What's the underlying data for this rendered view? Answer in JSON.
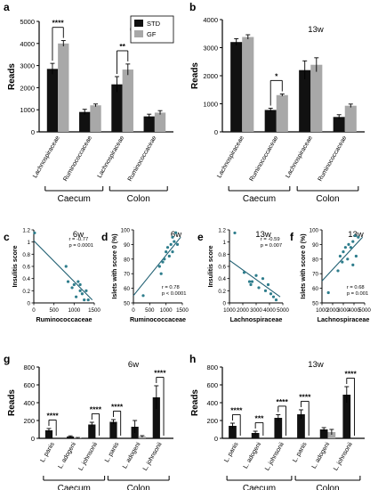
{
  "colors": {
    "std": "#111111",
    "gf": "#a8a8a8",
    "scatter_point": "#2e7d8c",
    "fit_line": "#1f5f72"
  },
  "chart_data": [
    {
      "panel": "a",
      "type": "bar",
      "title": "6w",
      "ylabel": "Reads",
      "ylim": [
        0,
        5000
      ],
      "yticks": [
        0,
        1000,
        2000,
        3000,
        4000,
        5000
      ],
      "categories": [
        "Lachnospiraceae",
        "Ruminococcaceae",
        "Lachnospiraceae",
        "Ruminococcaceae"
      ],
      "groups": [
        {
          "label": "Caecum",
          "categories": [
            0,
            1
          ]
        },
        {
          "label": "Colon",
          "categories": [
            2,
            3
          ]
        }
      ],
      "legend": {
        "position": "top-right",
        "entries": [
          "STD",
          "GF"
        ]
      },
      "series": [
        {
          "name": "STD",
          "values": [
            2850,
            900,
            2150,
            700
          ],
          "errors": [
            250,
            120,
            350,
            100
          ]
        },
        {
          "name": "GF",
          "values": [
            4000,
            1200,
            2820,
            870
          ],
          "errors": [
            130,
            60,
            250,
            90
          ]
        }
      ],
      "annotations": [
        {
          "category": 0,
          "text": "****"
        },
        {
          "category": 2,
          "text": "**"
        }
      ]
    },
    {
      "panel": "b",
      "type": "bar",
      "title": "13w",
      "ylabel": "Reads",
      "ylim": [
        0,
        4000
      ],
      "yticks": [
        0,
        1000,
        2000,
        3000,
        4000
      ],
      "categories": [
        "Lachnospiraceae",
        "Ruminococcaceae",
        "Lachnospiraceae",
        "Ruminococcaceae"
      ],
      "groups": [
        {
          "label": "Caecum",
          "categories": [
            0,
            1
          ]
        },
        {
          "label": "Colon",
          "categories": [
            2,
            3
          ]
        }
      ],
      "series": [
        {
          "name": "STD",
          "values": [
            3200,
            780,
            2200,
            530
          ],
          "errors": [
            120,
            60,
            330,
            80
          ]
        },
        {
          "name": "GF",
          "values": [
            3380,
            1310,
            2390,
            930
          ],
          "errors": [
            80,
            40,
            250,
            60
          ]
        }
      ],
      "annotations": [
        {
          "category": 1,
          "text": "*"
        }
      ]
    },
    {
      "panel": "c",
      "type": "scatter",
      "title": "6w",
      "xlabel": "Ruminococcaceae",
      "ylabel": "Insulitis score",
      "xlim": [
        0,
        1500
      ],
      "ylim": [
        0,
        1.2
      ],
      "xticks": [
        0,
        500,
        1000,
        1500
      ],
      "yticks": [
        0,
        0.2,
        0.4,
        0.6,
        0.8,
        1.0,
        1.2
      ],
      "stats": [
        "r = -0.77",
        "p = 0.0001"
      ],
      "fit": [
        [
          0,
          1.02
        ],
        [
          1450,
          0.05
        ]
      ],
      "points": [
        [
          20,
          1.15
        ],
        [
          800,
          0.6
        ],
        [
          850,
          0.35
        ],
        [
          950,
          0.25
        ],
        [
          1000,
          0.3
        ],
        [
          1050,
          0.1
        ],
        [
          1100,
          0.35
        ],
        [
          1150,
          0.3
        ],
        [
          1200,
          0.15
        ],
        [
          1250,
          0.05
        ],
        [
          1300,
          0.2
        ],
        [
          1350,
          0.05
        ],
        [
          1150,
          0.2
        ]
      ]
    },
    {
      "panel": "d",
      "type": "scatter",
      "title": "6w",
      "xlabel": "Ruminococcaceae",
      "ylabel": "Islets with score 0 (%)",
      "xlim": [
        0,
        1500
      ],
      "ylim": [
        50,
        100
      ],
      "xticks": [
        0,
        500,
        1000,
        1500
      ],
      "yticks": [
        50,
        60,
        70,
        80,
        90,
        100
      ],
      "stats": [
        "r = 0.78",
        "p < 0.0001"
      ],
      "fit": [
        [
          0,
          55
        ],
        [
          1450,
          95
        ]
      ],
      "points": [
        [
          300,
          55
        ],
        [
          800,
          75
        ],
        [
          850,
          70
        ],
        [
          900,
          78
        ],
        [
          950,
          80
        ],
        [
          1000,
          85
        ],
        [
          1050,
          88
        ],
        [
          1100,
          82
        ],
        [
          1150,
          90
        ],
        [
          1200,
          95
        ],
        [
          1250,
          92
        ],
        [
          1300,
          98
        ],
        [
          1350,
          90
        ],
        [
          1200,
          85
        ]
      ]
    },
    {
      "panel": "e",
      "type": "scatter",
      "title": "13w",
      "xlabel": "Lachnospiraceae",
      "ylabel": "Insulitis score",
      "xlim": [
        1000,
        5000
      ],
      "ylim": [
        0,
        1.2
      ],
      "xticks": [
        1000,
        2000,
        3000,
        4000,
        5000
      ],
      "yticks": [
        0,
        0.2,
        0.4,
        0.6,
        0.8,
        1.0,
        1.2
      ],
      "stats": [
        "r = -0.59",
        "p = 0.007"
      ],
      "fit": [
        [
          1000,
          0.7
        ],
        [
          4800,
          0.1
        ]
      ],
      "points": [
        [
          1400,
          1.15
        ],
        [
          2100,
          0.5
        ],
        [
          2500,
          0.35
        ],
        [
          2600,
          0.3
        ],
        [
          2700,
          0.35
        ],
        [
          3000,
          0.45
        ],
        [
          3200,
          0.25
        ],
        [
          3500,
          0.4
        ],
        [
          3700,
          0.2
        ],
        [
          3900,
          0.3
        ],
        [
          4100,
          0.15
        ],
        [
          4300,
          0.1
        ],
        [
          4500,
          0.05
        ]
      ]
    },
    {
      "panel": "f",
      "type": "scatter",
      "title": "13w",
      "xlabel": "Lachnospiraceae",
      "ylabel": "Islets with score 0 (%)",
      "xlim": [
        1000,
        5000
      ],
      "ylim": [
        50,
        100
      ],
      "xticks": [
        1000,
        2000,
        3000,
        4000,
        5000
      ],
      "yticks": [
        50,
        60,
        70,
        80,
        90,
        100
      ],
      "stats": [
        "r = 0.68",
        "p = 0.001"
      ],
      "fit": [
        [
          1000,
          65
        ],
        [
          4800,
          95
        ]
      ],
      "points": [
        [
          1600,
          57
        ],
        [
          2500,
          72
        ],
        [
          2700,
          82
        ],
        [
          2900,
          78
        ],
        [
          3000,
          85
        ],
        [
          3200,
          88
        ],
        [
          3400,
          80
        ],
        [
          3500,
          90
        ],
        [
          3700,
          88
        ],
        [
          3900,
          92
        ],
        [
          4100,
          96
        ],
        [
          4200,
          82
        ],
        [
          4400,
          95
        ],
        [
          3900,
          76
        ]
      ]
    },
    {
      "panel": "g",
      "type": "bar",
      "title": "6w",
      "ylabel": "Reads",
      "ylim": [
        0,
        800
      ],
      "yticks": [
        0,
        200,
        400,
        600,
        800
      ],
      "categories": [
        "L. panis",
        "L. adogeni",
        "L. johnsonii",
        "L. panis",
        "L. adogeni",
        "L. johnsonii"
      ],
      "groups": [
        {
          "label": "Caecum",
          "categories": [
            0,
            1,
            2
          ]
        },
        {
          "label": "Colon",
          "categories": [
            3,
            4,
            5
          ]
        }
      ],
      "series": [
        {
          "name": "STD",
          "values": [
            90,
            20,
            155,
            185,
            130,
            460
          ],
          "errors": [
            20,
            8,
            25,
            25,
            70,
            130
          ]
        },
        {
          "name": "GF",
          "values": [
            0,
            5,
            0,
            0,
            20,
            0
          ],
          "errors": [
            0,
            4,
            0,
            0,
            10,
            0
          ]
        }
      ],
      "annotations": [
        {
          "category": 0,
          "text": "****"
        },
        {
          "category": 2,
          "text": "****"
        },
        {
          "category": 3,
          "text": "****"
        },
        {
          "category": 5,
          "text": "****"
        }
      ]
    },
    {
      "panel": "h",
      "type": "bar",
      "title": "13w",
      "ylabel": "Reads",
      "ylim": [
        0,
        800
      ],
      "yticks": [
        0,
        200,
        400,
        600,
        800
      ],
      "categories": [
        "L. panis",
        "L. adogeni",
        "L. johnsonii",
        "L. panis",
        "L. adogeni",
        "L. johnsonii"
      ],
      "groups": [
        {
          "label": "Caecum",
          "categories": [
            0,
            1,
            2
          ]
        },
        {
          "label": "Colon",
          "categories": [
            3,
            4,
            5
          ]
        }
      ],
      "series": [
        {
          "name": "STD",
          "values": [
            140,
            60,
            230,
            270,
            100,
            490
          ],
          "errors": [
            30,
            20,
            35,
            50,
            20,
            90
          ]
        },
        {
          "name": "GF",
          "values": [
            0,
            0,
            0,
            0,
            70,
            0
          ],
          "errors": [
            0,
            0,
            0,
            0,
            30,
            0
          ]
        }
      ],
      "annotations": [
        {
          "category": 0,
          "text": "****"
        },
        {
          "category": 1,
          "text": "***"
        },
        {
          "category": 2,
          "text": "****"
        },
        {
          "category": 3,
          "text": "****"
        },
        {
          "category": 5,
          "text": "****"
        }
      ]
    }
  ]
}
